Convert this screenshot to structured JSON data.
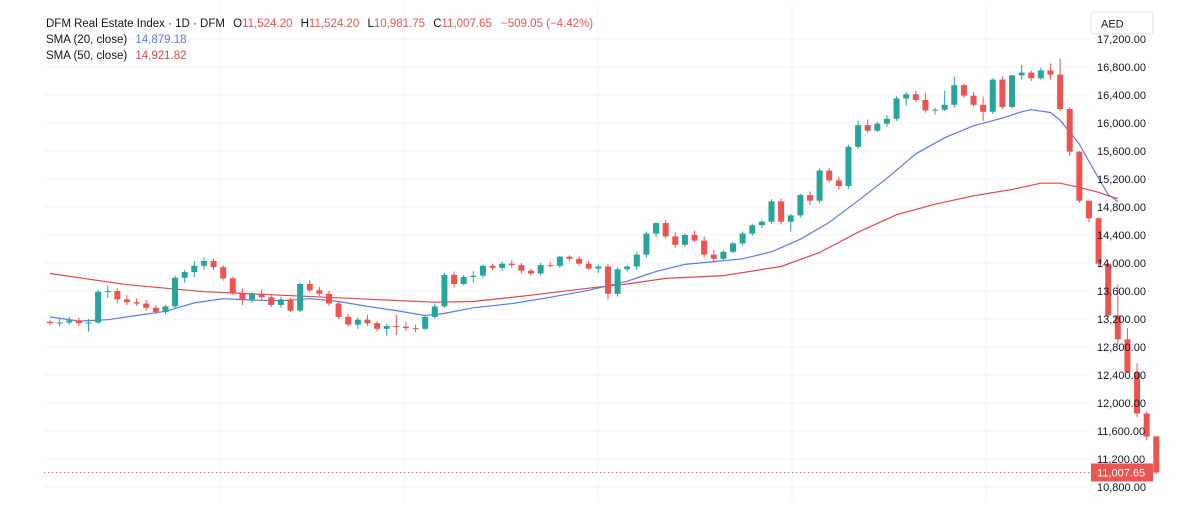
{
  "header": {
    "symbol_title": "DFM Real Estate Index · 1D · DFM",
    "o_label": "O",
    "o_value": "11,524.20",
    "h_label": "H",
    "h_value": "11,524.20",
    "l_label": "L",
    "l_value": "10,981.75",
    "c_label": "C",
    "c_value": "11,007.65",
    "change": "−509.05 (−4.42%)",
    "sma20_label": "SMA (20, close)",
    "sma20_value": "14,879.18",
    "sma50_label": "SMA (50, close)",
    "sma50_value": "14,921.82",
    "currency": "AED",
    "last_price_label": "11,007.65"
  },
  "colors": {
    "up": "#26a69a",
    "down": "#ef5350",
    "sma20": "#5b7ee5",
    "sma50": "#e0474c",
    "grid": "#f0f3fa",
    "text": "#131722"
  },
  "chart_data": {
    "type": "candlestick",
    "title": "DFM Real Estate Index · 1D · DFM",
    "ylabel": "AED",
    "ylim": [
      10720,
      17320
    ],
    "y_ticks": [
      10800,
      11200,
      11600,
      12000,
      12400,
      12800,
      13200,
      13600,
      14000,
      14400,
      14800,
      15200,
      15600,
      16000,
      16400,
      16800,
      17200
    ],
    "grid": true,
    "last_price": 11007.65,
    "candles": [
      [
        13160,
        13190,
        13110,
        13140
      ],
      [
        13140,
        13200,
        13090,
        13150
      ],
      [
        13150,
        13230,
        13120,
        13180
      ],
      [
        13180,
        13220,
        13100,
        13140
      ],
      [
        13140,
        13200,
        13020,
        13150
      ],
      [
        13150,
        13620,
        13130,
        13590
      ],
      [
        13590,
        13680,
        13500,
        13600
      ],
      [
        13600,
        13640,
        13430,
        13480
      ],
      [
        13480,
        13540,
        13400,
        13440
      ],
      [
        13440,
        13490,
        13390,
        13420
      ],
      [
        13420,
        13470,
        13320,
        13360
      ],
      [
        13360,
        13400,
        13270,
        13300
      ],
      [
        13300,
        13400,
        13270,
        13380
      ],
      [
        13380,
        13820,
        13350,
        13790
      ],
      [
        13790,
        13900,
        13720,
        13870
      ],
      [
        13870,
        14030,
        13800,
        13960
      ],
      [
        13960,
        14080,
        13900,
        14030
      ],
      [
        14030,
        14060,
        13900,
        13940
      ],
      [
        13940,
        13970,
        13750,
        13780
      ],
      [
        13780,
        13800,
        13540,
        13570
      ],
      [
        13570,
        13640,
        13400,
        13480
      ],
      [
        13480,
        13580,
        13430,
        13560
      ],
      [
        13560,
        13620,
        13480,
        13510
      ],
      [
        13510,
        13550,
        13370,
        13400
      ],
      [
        13400,
        13520,
        13360,
        13480
      ],
      [
        13480,
        13500,
        13300,
        13320
      ],
      [
        13320,
        13720,
        13300,
        13700
      ],
      [
        13700,
        13760,
        13580,
        13610
      ],
      [
        13610,
        13660,
        13530,
        13560
      ],
      [
        13560,
        13600,
        13390,
        13420
      ],
      [
        13420,
        13440,
        13200,
        13230
      ],
      [
        13230,
        13270,
        13090,
        13120
      ],
      [
        13120,
        13220,
        13060,
        13190
      ],
      [
        13190,
        13260,
        13100,
        13140
      ],
      [
        13140,
        13170,
        13020,
        13060
      ],
      [
        13060,
        13130,
        12960,
        13100
      ],
      [
        13100,
        13260,
        12970,
        13090
      ],
      [
        13090,
        13160,
        13030,
        13070
      ],
      [
        13070,
        13120,
        13010,
        13060
      ],
      [
        13060,
        13260,
        13040,
        13230
      ],
      [
        13230,
        13420,
        13200,
        13380
      ],
      [
        13380,
        13860,
        13360,
        13830
      ],
      [
        13830,
        13880,
        13650,
        13700
      ],
      [
        13700,
        13830,
        13680,
        13800
      ],
      [
        13800,
        13880,
        13720,
        13820
      ],
      [
        13820,
        13980,
        13790,
        13960
      ],
      [
        13960,
        13990,
        13900,
        13930
      ],
      [
        13930,
        14020,
        13890,
        13990
      ],
      [
        13990,
        14040,
        13930,
        13970
      ],
      [
        13970,
        14000,
        13850,
        13890
      ],
      [
        13890,
        13920,
        13820,
        13850
      ],
      [
        13850,
        14000,
        13820,
        13970
      ],
      [
        13970,
        14010,
        13940,
        13960
      ],
      [
        13960,
        14100,
        13930,
        14090
      ],
      [
        14090,
        14110,
        14030,
        14060
      ],
      [
        14060,
        14090,
        13960,
        13990
      ],
      [
        13990,
        14030,
        13900,
        13920
      ],
      [
        13920,
        13980,
        13860,
        13950
      ],
      [
        13950,
        13990,
        13480,
        13560
      ],
      [
        13560,
        13940,
        13520,
        13910
      ],
      [
        13910,
        13970,
        13880,
        13950
      ],
      [
        13950,
        14160,
        13900,
        14120
      ],
      [
        14120,
        14450,
        14080,
        14420
      ],
      [
        14420,
        14580,
        14370,
        14570
      ],
      [
        14570,
        14620,
        14350,
        14380
      ],
      [
        14380,
        14440,
        14220,
        14260
      ],
      [
        14260,
        14420,
        14230,
        14400
      ],
      [
        14400,
        14460,
        14300,
        14320
      ],
      [
        14320,
        14380,
        14080,
        14120
      ],
      [
        14120,
        14190,
        14000,
        14060
      ],
      [
        14060,
        14180,
        14030,
        14160
      ],
      [
        14160,
        14300,
        14140,
        14280
      ],
      [
        14280,
        14450,
        14250,
        14420
      ],
      [
        14420,
        14560,
        14390,
        14540
      ],
      [
        14540,
        14620,
        14500,
        14590
      ],
      [
        14590,
        14910,
        14560,
        14880
      ],
      [
        14880,
        14920,
        14550,
        14590
      ],
      [
        14590,
        14700,
        14450,
        14680
      ],
      [
        14680,
        14990,
        14650,
        14970
      ],
      [
        14970,
        15020,
        14830,
        14890
      ],
      [
        14890,
        15350,
        14860,
        15320
      ],
      [
        15320,
        15360,
        15150,
        15180
      ],
      [
        15180,
        15230,
        15050,
        15100
      ],
      [
        15100,
        15690,
        15060,
        15660
      ],
      [
        15660,
        16030,
        15630,
        15970
      ],
      [
        15970,
        16050,
        15860,
        15890
      ],
      [
        15890,
        16020,
        15870,
        15990
      ],
      [
        15990,
        16110,
        15950,
        16060
      ],
      [
        16060,
        16380,
        16030,
        16350
      ],
      [
        16350,
        16440,
        16250,
        16410
      ],
      [
        16410,
        16460,
        16300,
        16330
      ],
      [
        16330,
        16430,
        16150,
        16180
      ],
      [
        16180,
        16220,
        16120,
        16190
      ],
      [
        16190,
        16460,
        16170,
        16260
      ],
      [
        16260,
        16660,
        16220,
        16540
      ],
      [
        16540,
        16560,
        16360,
        16390
      ],
      [
        16390,
        16440,
        16240,
        16260
      ],
      [
        16260,
        16380,
        16030,
        16160
      ],
      [
        16160,
        16640,
        16130,
        16620
      ],
      [
        16620,
        16670,
        16200,
        16230
      ],
      [
        16230,
        16690,
        16210,
        16680
      ],
      [
        16680,
        16830,
        16620,
        16720
      ],
      [
        16720,
        16750,
        16600,
        16640
      ],
      [
        16640,
        16790,
        16620,
        16750
      ],
      [
        16750,
        16850,
        16620,
        16690
      ],
      [
        16690,
        16920,
        16170,
        16200
      ],
      [
        16200,
        16230,
        15530,
        15590
      ],
      [
        15590,
        15600,
        14860,
        14890
      ],
      [
        14890,
        14890,
        14580,
        14640
      ],
      [
        14640,
        14650,
        13960,
        13990
      ],
      [
        13990,
        14000,
        13230,
        13250
      ],
      [
        13250,
        13690,
        12840,
        12910
      ],
      [
        12910,
        13070,
        12430,
        12440
      ],
      [
        12440,
        12570,
        11800,
        11850
      ],
      [
        11850,
        11880,
        11470,
        11520
      ],
      [
        11524.2,
        11524.2,
        10981.75,
        11007.65
      ]
    ],
    "sma20": [
      [
        0,
        13230
      ],
      [
        3,
        13170
      ],
      [
        6,
        13190
      ],
      [
        9,
        13250
      ],
      [
        12,
        13310
      ],
      [
        15,
        13430
      ],
      [
        18,
        13490
      ],
      [
        21,
        13470
      ],
      [
        24,
        13460
      ],
      [
        27,
        13490
      ],
      [
        30,
        13450
      ],
      [
        33,
        13380
      ],
      [
        36,
        13320
      ],
      [
        39,
        13250
      ],
      [
        41,
        13280
      ],
      [
        44,
        13360
      ],
      [
        48,
        13420
      ],
      [
        52,
        13510
      ],
      [
        56,
        13610
      ],
      [
        60,
        13740
      ],
      [
        63,
        13880
      ],
      [
        66,
        13980
      ],
      [
        69,
        14020
      ],
      [
        72,
        14060
      ],
      [
        75,
        14160
      ],
      [
        78,
        14340
      ],
      [
        81,
        14580
      ],
      [
        84,
        14890
      ],
      [
        87,
        15210
      ],
      [
        90,
        15560
      ],
      [
        93,
        15790
      ],
      [
        96,
        15960
      ],
      [
        99,
        16070
      ],
      [
        101,
        16160
      ],
      [
        102,
        16190
      ],
      [
        104,
        16150
      ],
      [
        105,
        16040
      ],
      [
        107,
        15700
      ],
      [
        108,
        15450
      ],
      [
        109,
        15210
      ],
      [
        110,
        14979
      ],
      [
        111,
        14879.18
      ]
    ],
    "sma50": [
      [
        0,
        13850
      ],
      [
        8,
        13690
      ],
      [
        16,
        13590
      ],
      [
        24,
        13540
      ],
      [
        32,
        13490
      ],
      [
        40,
        13440
      ],
      [
        44,
        13450
      ],
      [
        50,
        13540
      ],
      [
        56,
        13640
      ],
      [
        60,
        13700
      ],
      [
        64,
        13780
      ],
      [
        70,
        13820
      ],
      [
        76,
        13950
      ],
      [
        80,
        14150
      ],
      [
        84,
        14440
      ],
      [
        88,
        14690
      ],
      [
        92,
        14840
      ],
      [
        96,
        14960
      ],
      [
        100,
        15050
      ],
      [
        103,
        15140
      ],
      [
        105,
        15140
      ],
      [
        107,
        15080
      ],
      [
        109,
        15010
      ],
      [
        110,
        14960
      ],
      [
        111,
        14921.82
      ]
    ]
  }
}
